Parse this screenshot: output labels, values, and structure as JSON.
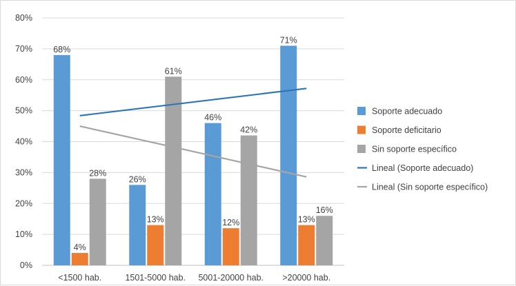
{
  "chart_data": {
    "type": "bar",
    "categories": [
      "<1500 hab.",
      "1501-5000 hab.",
      "5001-20000 hab.",
      ">20000 hab."
    ],
    "series": [
      {
        "name": "Soporte adecuado",
        "values": [
          68,
          26,
          46,
          71
        ],
        "labels": [
          "68%",
          "26%",
          "46%",
          "71%"
        ],
        "color": "#5b9bd5"
      },
      {
        "name": "Soporte deficitario",
        "values": [
          4,
          13,
          12,
          13
        ],
        "labels": [
          "4%",
          "13%",
          "12%",
          "13%"
        ],
        "color": "#ed7d31"
      },
      {
        "name": "Sin soporte específico",
        "values": [
          28,
          61,
          42,
          16
        ],
        "labels": [
          "28%",
          "61%",
          "42%",
          "16%"
        ],
        "color": "#a5a5a5"
      }
    ],
    "trendlines": [
      {
        "name": "Lineal (Soporte adecuado)",
        "color": "#2e75b6",
        "start": 48.4,
        "end": 57.2
      },
      {
        "name": "Lineal (Sin soporte específico)",
        "color": "#a5a5a5",
        "start": 45,
        "end": 28.6
      }
    ],
    "ylim": [
      0,
      80
    ],
    "yticks": [
      0,
      10,
      20,
      30,
      40,
      50,
      60,
      70,
      80
    ],
    "ytick_labels": [
      "0%",
      "10%",
      "20%",
      "30%",
      "40%",
      "50%",
      "60%",
      "70%",
      "80%"
    ],
    "grid": true,
    "legend_position": "right"
  }
}
